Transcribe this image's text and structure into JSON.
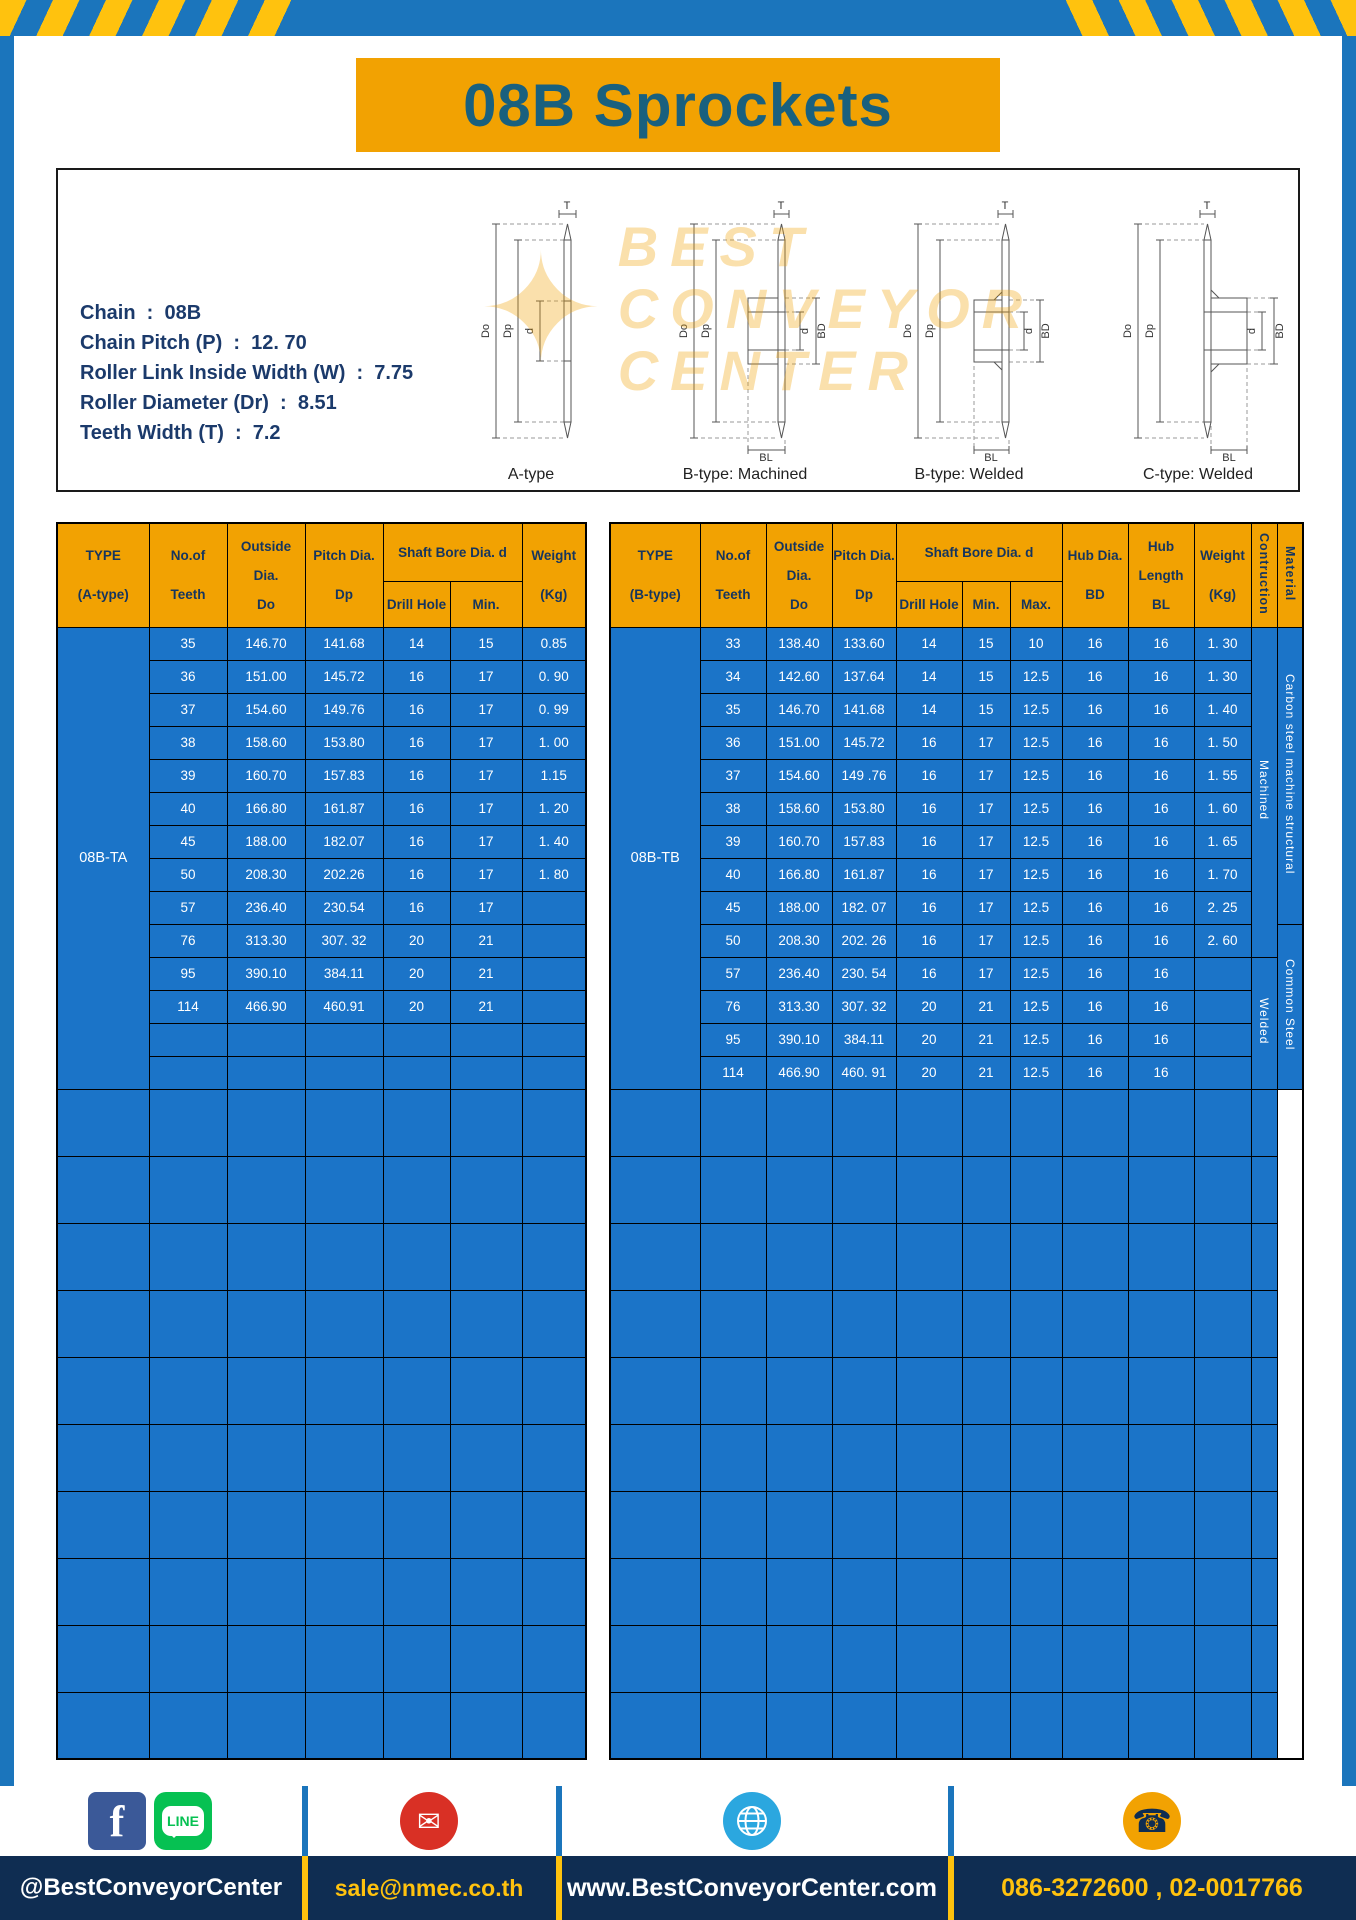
{
  "title": "08B Sprockets",
  "colors": {
    "accent_yellow": "#F2A202",
    "hazard_yellow": "#FFC20E",
    "frame_blue": "#1B75BC",
    "table_blue": "#1B74C8",
    "header_navy": "#15355F",
    "title_teal": "#19607E",
    "footer_navy": "#0F2D52"
  },
  "specs": {
    "lines": [
      "Chain  :  08B",
      "Chain Pitch (P)  :  12. 70",
      "Roller Link Inside Width (W)  :  7.75",
      "Roller Diameter (Dr)  :  8.51",
      "Teeth Width (T)  :  7.2"
    ]
  },
  "watermark": {
    "lines": [
      "BEST",
      "CONVEYOR",
      "CENTER"
    ]
  },
  "dim_labels": {
    "t": "T",
    "do": "Do",
    "dp": "Dp",
    "d": "d",
    "bd": "BD",
    "bl": "BL"
  },
  "diagrams": {
    "captions": [
      "A-type",
      "B-type: Machined",
      "B-type: Welded",
      "C-type: Welded"
    ]
  },
  "table_a": {
    "headers": {
      "type": [
        "TYPE",
        "(A-type)"
      ],
      "teeth": [
        "No.of",
        "Teeth"
      ],
      "outside": [
        "Outside",
        "Dia.",
        "Do"
      ],
      "pitch": [
        "Pitch Dia.",
        "Dp"
      ],
      "shaft": "Shaft Bore Dia. d",
      "drill": "Drill Hole",
      "min": "Min.",
      "weight": [
        "Weight",
        "(Kg)"
      ]
    },
    "type_value": "08B-TA",
    "rows": [
      [
        "35",
        "146.70",
        "141.68",
        "14",
        "15",
        "0.85"
      ],
      [
        "36",
        "151.00",
        "145.72",
        "16",
        "17",
        "0. 90"
      ],
      [
        "37",
        "154.60",
        "149.76",
        "16",
        "17",
        "0. 99"
      ],
      [
        "38",
        "158.60",
        "153.80",
        "16",
        "17",
        "1. 00"
      ],
      [
        "39",
        "160.70",
        "157.83",
        "16",
        "17",
        "1.15"
      ],
      [
        "40",
        "166.80",
        "161.87",
        "16",
        "17",
        "1. 20"
      ],
      [
        "45",
        "188.00",
        "182.07",
        "16",
        "17",
        "1. 40"
      ],
      [
        "50",
        "208.30",
        "202.26",
        "16",
        "17",
        "1. 80"
      ],
      [
        "57",
        "236.40",
        "230.54",
        "16",
        "17",
        ""
      ],
      [
        "76",
        "313.30",
        "307. 32",
        "20",
        "21",
        ""
      ],
      [
        "95",
        "390.10",
        "384.11",
        "20",
        "21",
        ""
      ],
      [
        "114",
        "466.90",
        "460.91",
        "20",
        "21",
        ""
      ],
      [
        "",
        "",
        "",
        "",
        "",
        ""
      ],
      [
        "",
        "",
        "",
        "",
        "",
        ""
      ]
    ],
    "empty_rows": 10
  },
  "table_b": {
    "headers": {
      "type": [
        "TYPE",
        "(B-type)"
      ],
      "teeth": [
        "No.of",
        "Teeth"
      ],
      "outside": [
        "Outside",
        "Dia.",
        "Do"
      ],
      "pitch": [
        "Pitch Dia.",
        "Dp"
      ],
      "shaft": "Shaft Bore Dia. d",
      "drill": "Drill Hole",
      "min": "Min.",
      "max": "Max.",
      "hub_dia": [
        "Hub Dia.",
        "BD"
      ],
      "hub_len": [
        "Hub",
        "Length",
        "BL"
      ],
      "weight": [
        "Weight",
        "(Kg)"
      ],
      "construction": "Contruction",
      "material": "Material"
    },
    "type_value": "08B-TB",
    "rows": [
      [
        "33",
        "138.40",
        "133.60",
        "14",
        "15",
        "10",
        "16",
        "16",
        "1. 30"
      ],
      [
        "34",
        "142.60",
        "137.64",
        "14",
        "15",
        "12.5",
        "16",
        "16",
        "1. 30"
      ],
      [
        "35",
        "146.70",
        "141.68",
        "14",
        "15",
        "12.5",
        "16",
        "16",
        "1. 40"
      ],
      [
        "36",
        "151.00",
        "145.72",
        "16",
        "17",
        "12.5",
        "16",
        "16",
        "1. 50"
      ],
      [
        "37",
        "154.60",
        "149 .76",
        "16",
        "17",
        "12.5",
        "16",
        "16",
        "1. 55"
      ],
      [
        "38",
        "158.60",
        "153.80",
        "16",
        "17",
        "12.5",
        "16",
        "16",
        "1. 60"
      ],
      [
        "39",
        "160.70",
        "157.83",
        "16",
        "17",
        "12.5",
        "16",
        "16",
        "1. 65"
      ],
      [
        "40",
        "166.80",
        "161.87",
        "16",
        "17",
        "12.5",
        "16",
        "16",
        "1. 70"
      ],
      [
        "45",
        "188.00",
        "182. 07",
        "16",
        "17",
        "12.5",
        "16",
        "16",
        "2. 25"
      ],
      [
        "50",
        "208.30",
        "202. 26",
        "16",
        "17",
        "12.5",
        "16",
        "16",
        "2. 60"
      ],
      [
        "57",
        "236.40",
        "230. 54",
        "16",
        "17",
        "12.5",
        "16",
        "16",
        ""
      ],
      [
        "76",
        "313.30",
        "307. 32",
        "20",
        "21",
        "12.5",
        "16",
        "16",
        ""
      ],
      [
        "95",
        "390.10",
        "384.11",
        "20",
        "21",
        "12.5",
        "16",
        "16",
        ""
      ],
      [
        "114",
        "466.90",
        "460. 91",
        "20",
        "21",
        "12.5",
        "16",
        "16",
        ""
      ]
    ],
    "spans": [
      [
        {
          "start": 0,
          "rows": 10,
          "text": "Machined"
        },
        {
          "start": 10,
          "rows": 4,
          "text": "Welded"
        }
      ],
      [
        {
          "start": 0,
          "rows": 9,
          "text": "Carbon steel  machine structural"
        },
        {
          "start": 9,
          "rows": 5,
          "text": "Common  Steel"
        }
      ]
    ],
    "empty_rows": 10
  },
  "footer": {
    "facebook_handle": "@BestConveyorCenter",
    "email": "sale@nmec.co.th",
    "website": "www.BestConveyorCenter.com",
    "phones": "086-3272600 , 02-0017766",
    "icons": {
      "facebook_glyph": "f",
      "line_label": "LINE",
      "mail_glyph": "✉",
      "phone_glyph": "☎"
    }
  }
}
